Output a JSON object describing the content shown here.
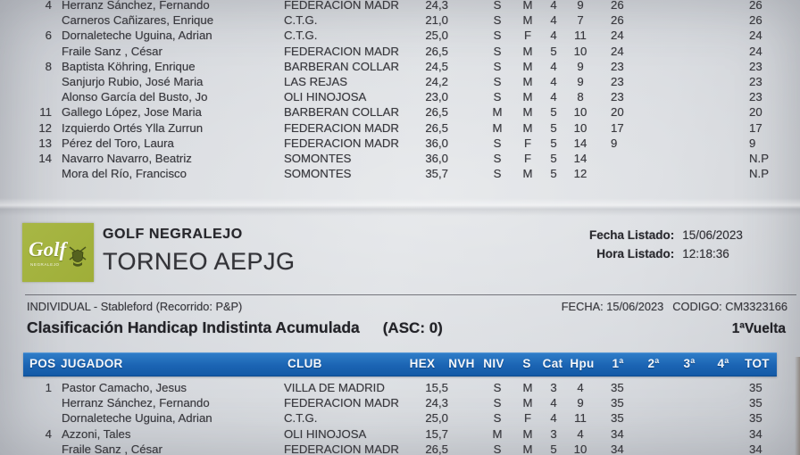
{
  "header": {
    "logo_text": "Golf",
    "logo_sub": "NEGRALEJO",
    "club_name": "GOLF NEGRALEJO",
    "tournament": "TORNEO AEPJG",
    "fecha_label": "Fecha Listado:",
    "fecha_value": "15/06/2023",
    "hora_label": "Hora Listado:",
    "hora_value": "12:18:36"
  },
  "info": {
    "left": "INDIVIDUAL - Stableford   (Recorrido: P&P)",
    "fecha": "FECHA: 15/06/2023",
    "codigo": "CODIGO: CM3323166",
    "title": "Clasificación Handicap Indistinta Acumulada",
    "asc": "(ASC:  0)",
    "vuelta": "1ªVuelta"
  },
  "colors": {
    "header_bar": "#1b64b3",
    "logo_green": "#a2b13e",
    "paper": "#d5d8dd"
  },
  "bottom_table": {
    "headers": [
      "POS",
      "JUGADOR",
      "CLUB",
      "HEX",
      "NVH",
      "NIV",
      "S",
      "Cat",
      "Hpu",
      "1ª",
      "2ª",
      "3ª",
      "4ª",
      "TOT"
    ],
    "rows": [
      {
        "pos": "1",
        "name": "Pastor Camacho, Jesus",
        "club": "VILLA DE MADRID",
        "hex": "15,5",
        "niv": "S",
        "s": "M",
        "cat": "3",
        "hpu": "4",
        "v1": "35",
        "tot": "35"
      },
      {
        "pos": "",
        "name": "Herranz Sánchez, Fernando",
        "club": "FEDERACION MADR",
        "hex": "24,3",
        "niv": "S",
        "s": "M",
        "cat": "4",
        "hpu": "9",
        "v1": "35",
        "tot": "35"
      },
      {
        "pos": "",
        "name": "Dornaleteche Uguina, Adrian",
        "club": "C.T.G.",
        "hex": "25,0",
        "niv": "S",
        "s": "F",
        "cat": "4",
        "hpu": "11",
        "v1": "35",
        "tot": "35"
      },
      {
        "pos": "4",
        "name": "Azzoni, Tales",
        "club": "OLI HINOJOSA",
        "hex": "15,7",
        "niv": "M",
        "s": "M",
        "cat": "3",
        "hpu": "4",
        "v1": "34",
        "tot": "34"
      },
      {
        "pos": "",
        "name": "Fraile Sanz , César",
        "club": "FEDERACION MADR",
        "hex": "26,5",
        "niv": "S",
        "s": "M",
        "cat": "5",
        "hpu": "10",
        "v1": "34",
        "tot": "34"
      }
    ]
  },
  "top_table": {
    "rows": [
      {
        "pos": "4",
        "name": "Herranz Sánchez, Fernando",
        "club": "FEDERACION MADR",
        "hex": "24,3",
        "niv": "S",
        "s": "M",
        "cat": "4",
        "hpu": "9",
        "v1": "26",
        "tot": "26"
      },
      {
        "pos": "",
        "name": "Carneros Cañizares, Enrique",
        "club": "C.T.G.",
        "hex": "21,0",
        "niv": "S",
        "s": "M",
        "cat": "4",
        "hpu": "7",
        "v1": "26",
        "tot": "26"
      },
      {
        "pos": "6",
        "name": "Dornaleteche Uguina, Adrian",
        "club": "C.T.G.",
        "hex": "25,0",
        "niv": "S",
        "s": "F",
        "cat": "4",
        "hpu": "11",
        "v1": "24",
        "tot": "24"
      },
      {
        "pos": "",
        "name": "Fraile Sanz , César",
        "club": "FEDERACION MADR",
        "hex": "26,5",
        "niv": "S",
        "s": "M",
        "cat": "5",
        "hpu": "10",
        "v1": "24",
        "tot": "24"
      },
      {
        "pos": "8",
        "name": "Baptista Köhring, Enrique",
        "club": "BARBERAN COLLAR",
        "hex": "24,5",
        "niv": "S",
        "s": "M",
        "cat": "4",
        "hpu": "9",
        "v1": "23",
        "tot": "23"
      },
      {
        "pos": "",
        "name": "Sanjurjo Rubio, José Maria",
        "club": "LAS REJAS",
        "hex": "24,2",
        "niv": "S",
        "s": "M",
        "cat": "4",
        "hpu": "9",
        "v1": "23",
        "tot": "23"
      },
      {
        "pos": "",
        "name": "Alonso García del Busto, Jo",
        "club": "OLI HINOJOSA",
        "hex": "23,0",
        "niv": "S",
        "s": "M",
        "cat": "4",
        "hpu": "8",
        "v1": "23",
        "tot": "23"
      },
      {
        "pos": "11",
        "name": "Gallego López, Jose Maria",
        "club": "BARBERAN COLLAR",
        "hex": "26,5",
        "niv": "M",
        "s": "M",
        "cat": "5",
        "hpu": "10",
        "v1": "20",
        "tot": "20"
      },
      {
        "pos": "12",
        "name": "Izquierdo Ortés Ylla Zurrun",
        "club": "FEDERACION MADR",
        "hex": "26,5",
        "niv": "M",
        "s": "M",
        "cat": "5",
        "hpu": "10",
        "v1": "17",
        "tot": "17"
      },
      {
        "pos": "13",
        "name": "Pérez del Toro, Laura",
        "club": "FEDERACION MADR",
        "hex": "36,0",
        "niv": "S",
        "s": "F",
        "cat": "5",
        "hpu": "14",
        "v1": "9",
        "tot": "9"
      },
      {
        "pos": "14",
        "name": "Navarro Navarro, Beatriz",
        "club": "SOMONTES",
        "hex": "36,0",
        "niv": "S",
        "s": "F",
        "cat": "5",
        "hpu": "14",
        "v1": "",
        "tot": "N.P"
      },
      {
        "pos": "",
        "name": "Mora del Río, Francisco",
        "club": "SOMONTES",
        "hex": "35,7",
        "niv": "S",
        "s": "M",
        "cat": "5",
        "hpu": "12",
        "v1": "",
        "tot": "N.P"
      }
    ]
  }
}
